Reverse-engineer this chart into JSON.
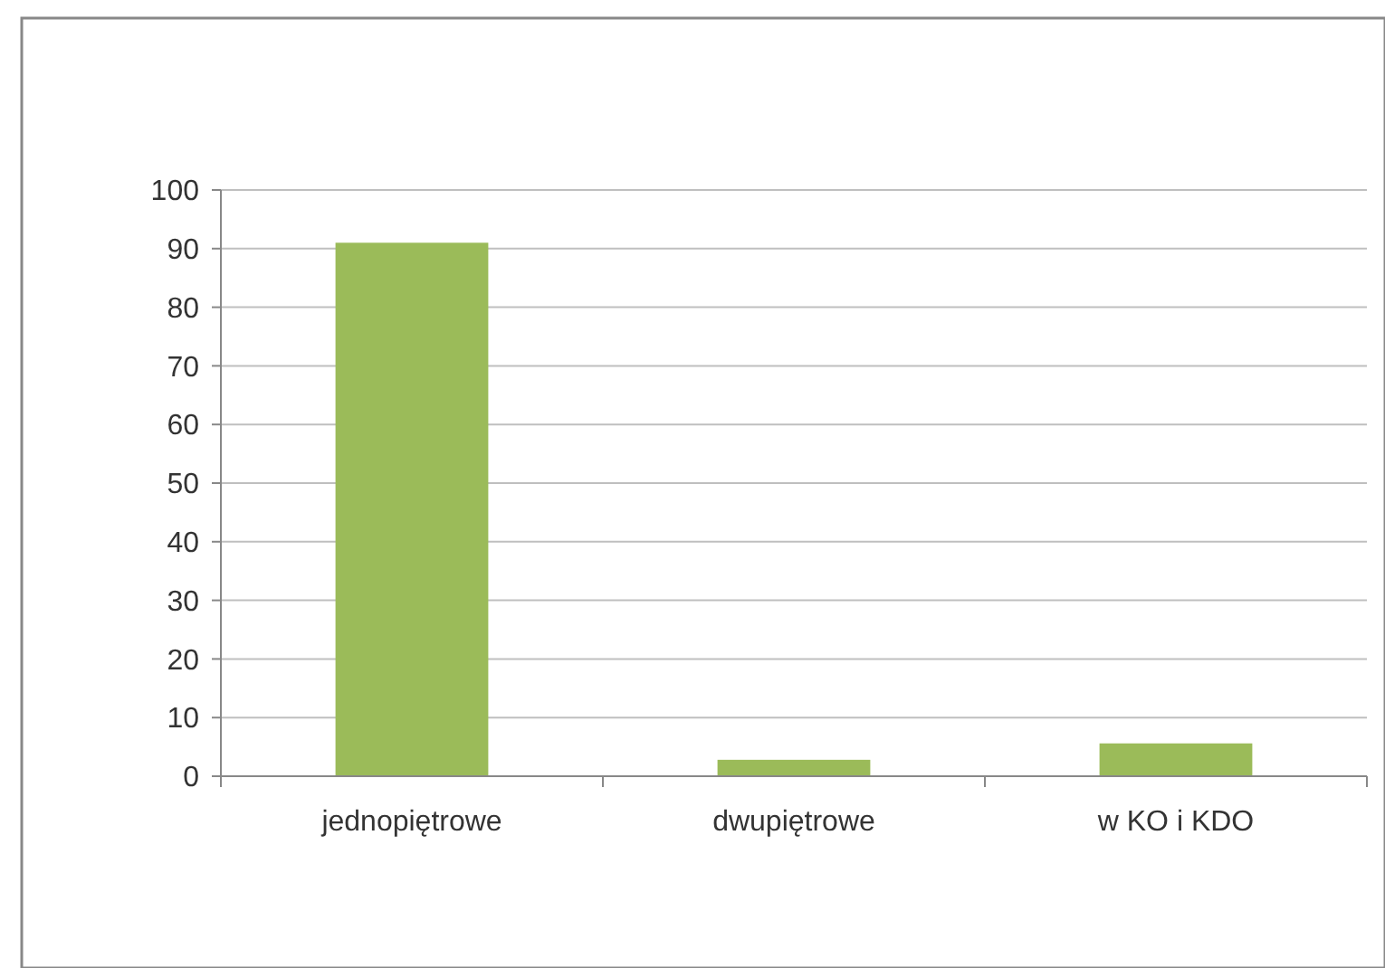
{
  "chart_data": {
    "type": "bar",
    "categories": [
      "jednopiętrowe",
      "dwupiętrowe",
      "w KO i KDO"
    ],
    "values": [
      91,
      2.8,
      5.6
    ],
    "color": "#9bbb59",
    "ylim": [
      0,
      100
    ],
    "yticks": [
      0,
      10,
      20,
      30,
      40,
      50,
      60,
      70,
      80,
      90,
      100
    ],
    "grid": "y"
  }
}
